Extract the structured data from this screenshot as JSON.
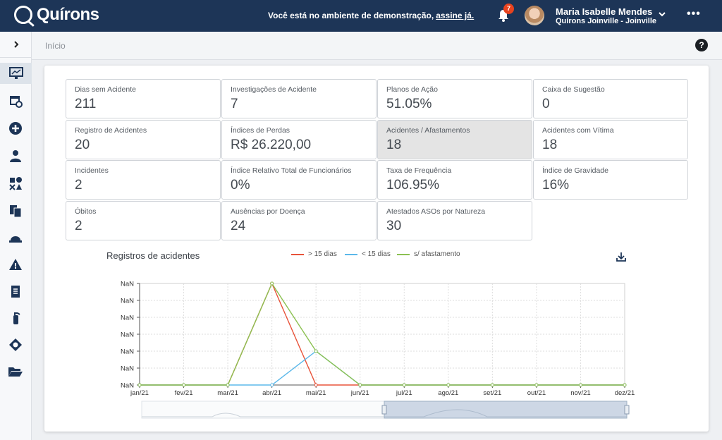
{
  "header": {
    "app_name": "Quírons",
    "demo_message": "Você está no ambiente de demonstração,",
    "demo_link": "assine já.",
    "notifications_count": "7",
    "user_name": "Maria Isabelle Mendes",
    "user_org": "Quírons Joinville - Joinville",
    "more_label": "•••"
  },
  "breadcrumb": {
    "current": "Início",
    "help_label": "?"
  },
  "sidebar": {
    "items": [
      {
        "icon": "dashboard-icon"
      },
      {
        "icon": "calendar-clock-icon"
      },
      {
        "icon": "plus-circle-icon"
      },
      {
        "icon": "people-icon"
      },
      {
        "icon": "shapes-icon"
      },
      {
        "icon": "documents-icon"
      },
      {
        "icon": "hard-hat-icon"
      },
      {
        "icon": "warning-icon"
      },
      {
        "icon": "clipboard-icon"
      },
      {
        "icon": "fire-extinguisher-icon"
      },
      {
        "icon": "worker-icon"
      },
      {
        "icon": "folder-open-icon"
      }
    ]
  },
  "tiles": [
    {
      "label": "Dias sem Acidente",
      "value": "211"
    },
    {
      "label": "Investigações de Acidente",
      "value": "7"
    },
    {
      "label": "Planos de Ação",
      "value": "51.05%"
    },
    {
      "label": "Caixa de Sugestão",
      "value": "0"
    },
    {
      "label": "Registro de Acidentes",
      "value": "20"
    },
    {
      "label": "Índices de Perdas",
      "value": "R$ 26.220,00"
    },
    {
      "label": "Acidentes / Afastamentos",
      "value": "18"
    },
    {
      "label": "Acidentes com Vítima",
      "value": "18"
    },
    {
      "label": "Incidentes",
      "value": "2"
    },
    {
      "label": "Índice Relativo Total de Funcionários",
      "value": "0%"
    },
    {
      "label": "Taxa de Frequência",
      "value": "106.95%"
    },
    {
      "label": "Índice de Gravidade",
      "value": "16%"
    },
    {
      "label": "Óbitos",
      "value": "2"
    },
    {
      "label": "Ausências por Doença",
      "value": "24"
    },
    {
      "label": "Atestados ASOs por Natureza",
      "value": "30"
    }
  ],
  "colors": {
    "header_bg": "#1d3557",
    "red": "#e8533a",
    "blue": "#5bb8ea",
    "green": "#8cc152",
    "badge": "#e8431f"
  },
  "chart_data": {
    "type": "line",
    "title": "Registros de acidentes",
    "categories": [
      "jan/21",
      "fev/21",
      "mar/21",
      "abr/21",
      "mai/21",
      "jun/21",
      "jul/21",
      "ago/21",
      "set/21",
      "out/21",
      "nov/21",
      "dez/21"
    ],
    "y_tick_labels": [
      "NaN",
      "NaN",
      "NaN",
      "NaN",
      "NaN",
      "NaN",
      "NaN"
    ],
    "ylim": [
      0,
      6
    ],
    "grid": true,
    "legend_position": "top-center",
    "series": [
      {
        "name": "> 15 dias",
        "color": "#e8533a",
        "values": [
          0,
          0,
          0,
          6,
          0,
          0,
          0,
          0,
          0,
          0,
          0,
          0
        ]
      },
      {
        "name": "< 15 dias",
        "color": "#5bb8ea",
        "values": [
          0,
          0,
          0,
          0,
          2,
          0,
          0,
          0,
          0,
          0,
          0,
          0
        ]
      },
      {
        "name": "s/ afastamento",
        "color": "#8cc152",
        "values": [
          0,
          0,
          0,
          6,
          2,
          0,
          0,
          0,
          0,
          0,
          0,
          0
        ]
      }
    ],
    "zoom_range": [
      0.5,
      1.0
    ]
  }
}
